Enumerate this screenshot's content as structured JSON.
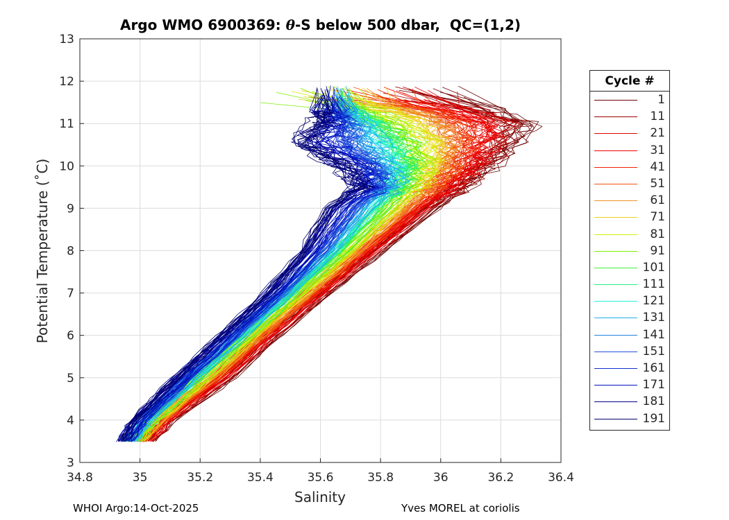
{
  "title": {
    "prefix": "Argo WMO 6900369: ",
    "theta": "θ",
    "suffix": "-S below 500 dbar,  QC=(1,2)"
  },
  "footer": {
    "left": "WHOI Argo:14-Oct-2025",
    "right": "Yves MOREL at coriolis"
  },
  "chart_data": {
    "type": "line",
    "title": "Argo WMO 6900369: θ-S below 500 dbar,  QC=(1,2)",
    "xlabel": "Salinity",
    "ylabel": "Potential Temperature (˚C)",
    "xlim": [
      34.8,
      36.4
    ],
    "ylim": [
      3,
      13
    ],
    "xticks": [
      "34.8",
      "35",
      "35.2",
      "35.4",
      "35.6",
      "35.8",
      "36",
      "36.2",
      "36.4"
    ],
    "yticks": [
      "3",
      "4",
      "5",
      "6",
      "7",
      "8",
      "9",
      "10",
      "11",
      "12",
      "13"
    ],
    "grid": true,
    "legend": {
      "title": "Cycle #",
      "placement": "outside-right"
    },
    "temperature_levels": [
      3.5,
      4,
      5,
      6,
      7,
      8,
      9,
      9.5,
      10,
      10.5,
      11,
      11.4
    ],
    "anchor_profiles": [
      {
        "cycle": 1,
        "salinity": [
          35.03,
          35.1,
          35.3,
          35.45,
          35.62,
          35.8,
          35.98,
          36.08,
          36.17,
          36.25,
          36.3,
          36.15
        ]
      },
      {
        "cycle": 91,
        "salinity": [
          34.98,
          35.04,
          35.2,
          35.36,
          35.52,
          35.68,
          35.82,
          35.88,
          35.92,
          35.9,
          35.82,
          35.7
        ]
      },
      {
        "cycle": 191,
        "salinity": [
          34.94,
          34.98,
          35.12,
          35.27,
          35.42,
          35.54,
          35.62,
          35.72,
          35.66,
          35.52,
          35.58,
          35.6
        ]
      }
    ],
    "series": [
      {
        "name": "1",
        "color": "#6b0000"
      },
      {
        "name": "11",
        "color": "#a00000"
      },
      {
        "name": "21",
        "color": "#e00000"
      },
      {
        "name": "31",
        "color": "#f00000"
      },
      {
        "name": "41",
        "color": "#f02000"
      },
      {
        "name": "51",
        "color": "#f05010"
      },
      {
        "name": "61",
        "color": "#f09020"
      },
      {
        "name": "71",
        "color": "#f0d020"
      },
      {
        "name": "81",
        "color": "#d0f000"
      },
      {
        "name": "91",
        "color": "#80f000"
      },
      {
        "name": "101",
        "color": "#40f040"
      },
      {
        "name": "111",
        "color": "#20f080"
      },
      {
        "name": "121",
        "color": "#20f0e0"
      },
      {
        "name": "131",
        "color": "#20b0f0"
      },
      {
        "name": "141",
        "color": "#2080e0"
      },
      {
        "name": "151",
        "color": "#2050e0"
      },
      {
        "name": "161",
        "color": "#1030d0"
      },
      {
        "name": "171",
        "color": "#0010c0"
      },
      {
        "name": "181",
        "color": "#000090"
      },
      {
        "name": "191",
        "color": "#000070"
      }
    ]
  }
}
